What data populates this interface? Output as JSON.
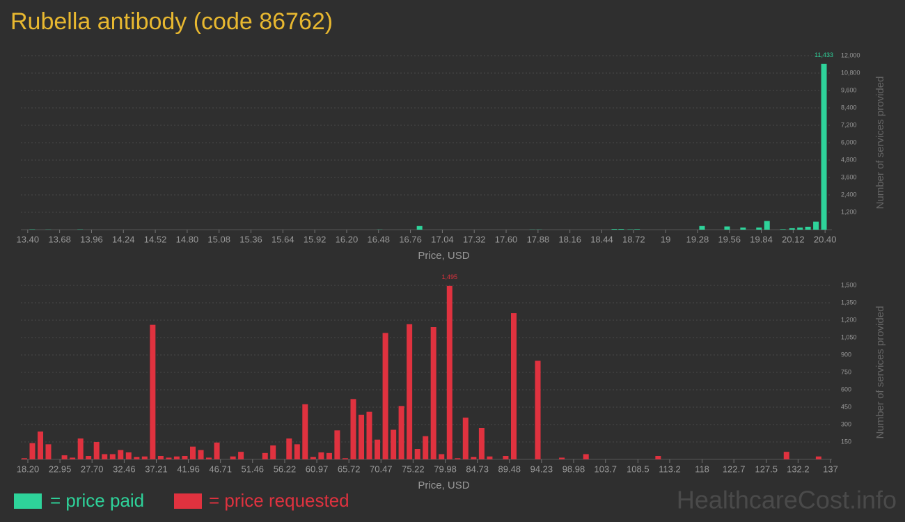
{
  "chart_data": [
    {
      "type": "bar",
      "title": "Rubella antibody (code 86762)",
      "grid": true,
      "x": [
        13.44,
        13.58,
        13.86,
        16.49,
        16.84,
        17.83,
        17.89,
        18.55,
        18.61,
        18.69,
        18.75,
        19.32,
        19.54,
        19.68,
        19.82,
        19.89,
        20.03,
        20.11,
        20.18,
        20.25,
        20.32,
        20.39
      ],
      "series": [
        {
          "name": "= price paid",
          "color": "#2ed39a",
          "values": [
            20,
            10,
            15,
            10,
            250,
            10,
            10,
            40,
            40,
            20,
            30,
            250,
            220,
            150,
            150,
            600,
            30,
            100,
            150,
            200,
            550,
            11433
          ],
          "value_labels": [
            null,
            null,
            null,
            null,
            null,
            null,
            null,
            null,
            null,
            null,
            null,
            null,
            null,
            null,
            null,
            null,
            null,
            null,
            null,
            null,
            null,
            "11,433"
          ]
        }
      ],
      "xlim": [
        13.34,
        20.46
      ],
      "xticks": [
        {
          "value": 13.4,
          "label": "13.40"
        },
        13.68,
        13.96,
        14.24,
        14.52,
        {
          "value": 14.8,
          "label": "14.80"
        },
        15.08,
        15.36,
        15.64,
        15.92,
        {
          "value": 16.2,
          "label": "16.20"
        },
        16.48,
        16.76,
        17.04,
        17.32,
        {
          "value": 17.6,
          "label": "17.60"
        },
        17.88,
        18.16,
        18.44,
        18.72,
        19,
        19.28,
        19.56,
        19.84,
        20.12,
        {
          "value": 20.4,
          "label": "20.40"
        }
      ],
      "ylim": [
        0,
        12000
      ],
      "yticks": [
        {
          "value": 1200,
          "label": "1,200"
        },
        {
          "value": 2400,
          "label": "2,400"
        },
        {
          "value": 3600,
          "label": "3,600"
        },
        {
          "value": 4800,
          "label": "4,800"
        },
        {
          "value": 6000,
          "label": "6,000"
        },
        {
          "value": 7200,
          "label": "7,200"
        },
        {
          "value": 8400,
          "label": "8,400"
        },
        {
          "value": 9600,
          "label": "9,600"
        },
        {
          "value": 10800,
          "label": "10,800"
        },
        {
          "value": 12000,
          "label": "12,000"
        }
      ],
      "x_label": "Price, USD",
      "y_label": "Number of services provided"
    },
    {
      "type": "bar",
      "grid": true,
      "x": [
        17.68,
        18.87,
        20.06,
        21.24,
        23.62,
        24.81,
        26.0,
        27.18,
        28.37,
        29.56,
        30.75,
        31.93,
        33.12,
        34.31,
        35.49,
        36.68,
        37.87,
        39.06,
        40.24,
        41.43,
        42.62,
        43.81,
        44.99,
        46.18,
        48.56,
        49.74,
        53.31,
        54.49,
        56.87,
        58.06,
        59.24,
        60.43,
        61.62,
        62.81,
        63.99,
        65.18,
        66.37,
        67.56,
        68.74,
        69.93,
        71.12,
        72.31,
        73.49,
        74.68,
        75.87,
        77.06,
        78.24,
        79.43,
        80.62,
        81.81,
        82.99,
        84.18,
        85.37,
        86.56,
        88.93,
        90.12,
        93.68,
        97.24,
        100.81,
        111.49,
        130.49,
        135.24
      ],
      "series": [
        {
          "name": "= price requested",
          "color": "#e0323f",
          "values": [
            10,
            140,
            240,
            130,
            35,
            15,
            180,
            30,
            150,
            45,
            45,
            80,
            60,
            20,
            25,
            1160,
            30,
            15,
            25,
            30,
            110,
            80,
            15,
            145,
            25,
            65,
            55,
            120,
            180,
            130,
            475,
            20,
            60,
            55,
            250,
            10,
            520,
            385,
            410,
            170,
            1090,
            255,
            460,
            1165,
            90,
            200,
            1140,
            45,
            1495,
            10,
            360,
            20,
            270,
            25,
            30,
            1260,
            850,
            15,
            45,
            30,
            65,
            25
          ],
          "value_labels": [
            null,
            null,
            null,
            null,
            null,
            null,
            null,
            null,
            null,
            null,
            null,
            null,
            null,
            null,
            null,
            null,
            null,
            null,
            null,
            null,
            null,
            null,
            null,
            null,
            null,
            null,
            null,
            null,
            null,
            null,
            null,
            null,
            null,
            null,
            null,
            null,
            null,
            null,
            null,
            null,
            null,
            null,
            null,
            null,
            null,
            null,
            null,
            null,
            "1,495",
            null,
            null,
            null,
            null,
            null,
            null,
            null,
            null,
            null,
            null,
            null,
            null,
            null
          ]
        }
      ],
      "xlim": [
        17.17,
        137.21
      ],
      "xticks": [
        {
          "value": 18.2,
          "label": "18.20"
        },
        22.95,
        {
          "value": 27.7,
          "label": "27.70"
        },
        32.46,
        37.21,
        41.96,
        46.71,
        51.46,
        56.22,
        60.97,
        65.72,
        70.47,
        75.22,
        79.98,
        84.73,
        89.48,
        94.23,
        98.98,
        103.7,
        108.5,
        113.2,
        118,
        122.7,
        127.5,
        132.2,
        137
      ],
      "ylim": [
        0,
        1500
      ],
      "yticks": [
        150,
        300,
        450,
        600,
        750,
        900,
        {
          "value": 1050,
          "label": "1,050"
        },
        {
          "value": 1200,
          "label": "1,200"
        },
        {
          "value": 1350,
          "label": "1,350"
        },
        {
          "value": 1500,
          "label": "1,500"
        }
      ],
      "x_label": "Price, USD",
      "y_label": "Number of services provided"
    }
  ],
  "watermark": "HealthcareCost.info"
}
